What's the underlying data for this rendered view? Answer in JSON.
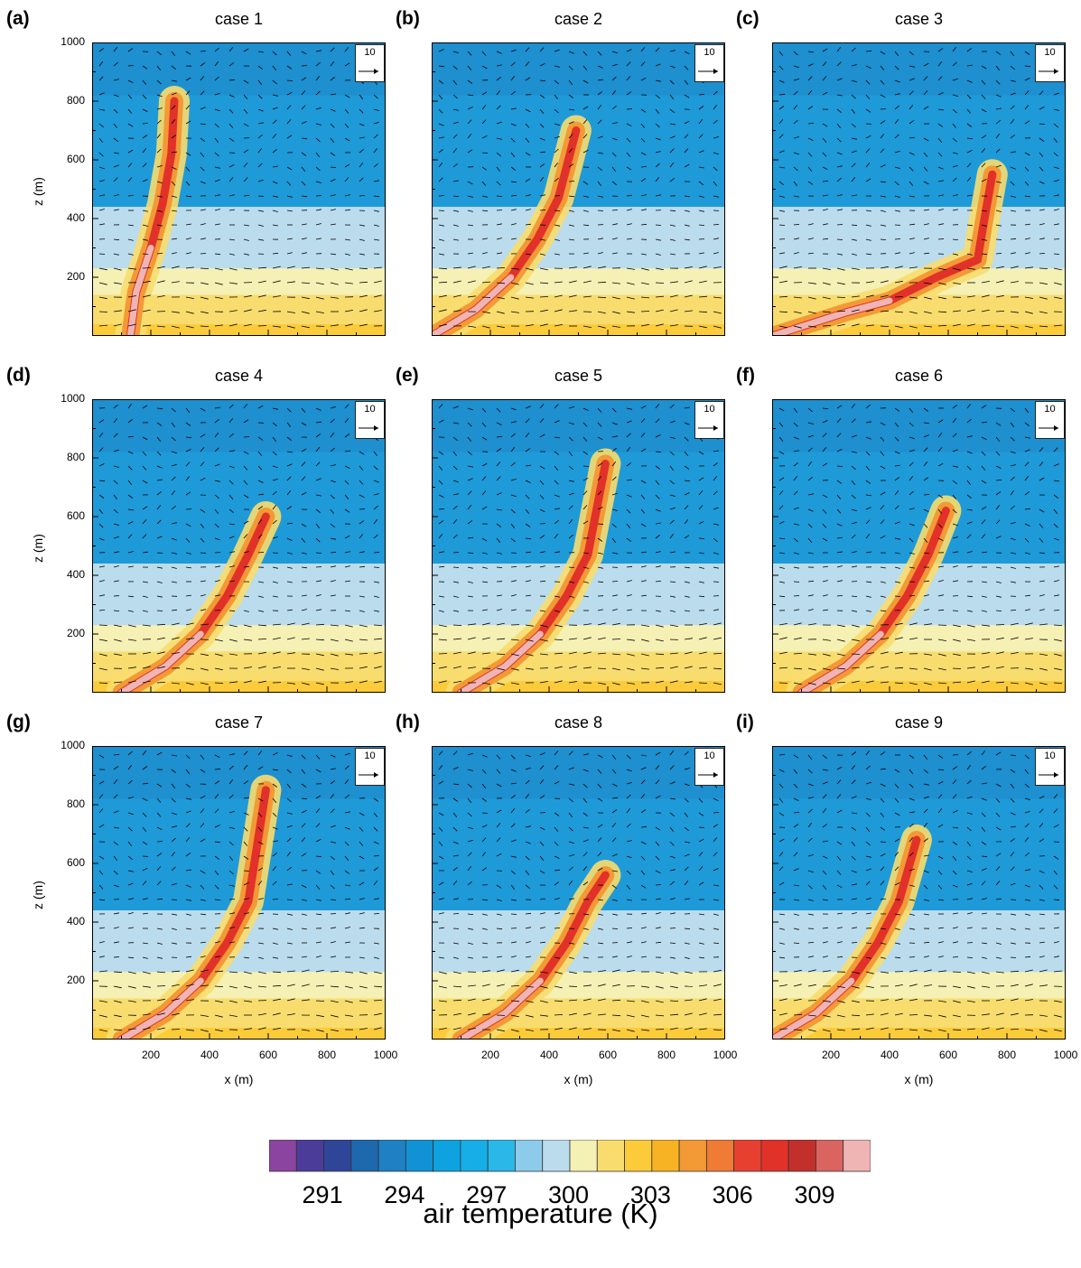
{
  "chart_data": {
    "type": "heatmap",
    "description_units": "filled contours of air temperature with wind vectors, x-z cross sections",
    "xlabel": "x (m)",
    "ylabel": "z (m)",
    "xlim": [
      0,
      1000
    ],
    "ylim": [
      0,
      1000
    ],
    "x_ticks": [
      200,
      400,
      600,
      800,
      1000
    ],
    "y_ticks": [
      200,
      400,
      600,
      800,
      1000
    ],
    "reference_vector": "10",
    "panels": [
      {
        "letter": "(a)",
        "title": "case 1",
        "plume_tilt": "vertical",
        "plume_x_base": 130,
        "plume_top_z": 800
      },
      {
        "letter": "(b)",
        "title": "case 2",
        "plume_tilt": "moderate",
        "plume_x_base": 0,
        "plume_top_z": 700
      },
      {
        "letter": "(c)",
        "title": "case 3",
        "plume_tilt": "strong",
        "plume_x_base": 0,
        "plume_top_z": 550
      },
      {
        "letter": "(d)",
        "title": "case 4",
        "plume_tilt": "moderate",
        "plume_x_base": 100,
        "plume_top_z": 600
      },
      {
        "letter": "(e)",
        "title": "case 5",
        "plume_tilt": "moderate",
        "plume_x_base": 100,
        "plume_top_z": 780
      },
      {
        "letter": "(f)",
        "title": "case 6",
        "plume_tilt": "moderate",
        "plume_x_base": 100,
        "plume_top_z": 620
      },
      {
        "letter": "(g)",
        "title": "case 7",
        "plume_tilt": "moderate",
        "plume_x_base": 100,
        "plume_top_z": 850
      },
      {
        "letter": "(h)",
        "title": "case 8",
        "plume_tilt": "moderate",
        "plume_x_base": 100,
        "plume_top_z": 560
      },
      {
        "letter": "(i)",
        "title": "case 9",
        "plume_tilt": "moderate",
        "plume_x_base": 0,
        "plume_top_z": 680
      }
    ],
    "colorbar": {
      "title": "air temperature (K)",
      "labels": [
        "291",
        "294",
        "297",
        "300",
        "303",
        "306",
        "309"
      ],
      "colors": [
        "#8b44a0",
        "#4c3c9a",
        "#2e4598",
        "#1e68ae",
        "#1f80c4",
        "#1192d4",
        "#0ea3e0",
        "#16aee6",
        "#29b8e8",
        "#8ccbe9",
        "#bbdcec",
        "#f5f0b4",
        "#f8dd6e",
        "#fccb3a",
        "#f7b324",
        "#f39935",
        "#ef7b35",
        "#e84030",
        "#e13129",
        "#c3302b",
        "#da6460",
        "#efb5b5"
      ]
    }
  }
}
